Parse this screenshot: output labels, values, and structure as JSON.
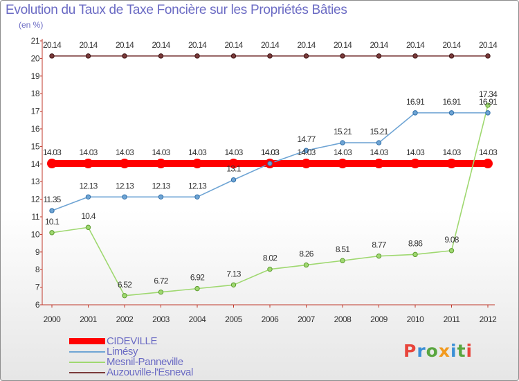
{
  "header": {
    "title": "Evolution du Taux de Taxe Foncière sur les Propriétés Bâties",
    "subtitle": "(en %)"
  },
  "logo": {
    "text": "Proxiti",
    "letter_colors": [
      "#e8453c",
      "#3a8fd6",
      "#5aa640",
      "#f29a1f",
      "#3a8fd6",
      "#5aa640",
      "#e8453c"
    ]
  },
  "chart_data": {
    "type": "line",
    "title": "Evolution du Taux de Taxe Foncière sur les Propriétés Bâties",
    "ylabel": "(en %)",
    "xlabel": "",
    "categories": [
      "2000",
      "2001",
      "2002",
      "2003",
      "2004",
      "2005",
      "2006",
      "2007",
      "2008",
      "2009",
      "2010",
      "2011",
      "2012"
    ],
    "ylim": [
      6,
      21
    ],
    "yticks": [
      6,
      7,
      8,
      9,
      10,
      11,
      12,
      13,
      14,
      15,
      16,
      17,
      18,
      19,
      20,
      21
    ],
    "grid": false,
    "legend_position": "bottom-left",
    "series": [
      {
        "name": "CIDEVILLE",
        "color": "#ff0000",
        "values": [
          14.03,
          14.03,
          14.03,
          14.03,
          14.03,
          14.03,
          14.03,
          14.03,
          14.03,
          14.03,
          14.03,
          14.03,
          14.03
        ],
        "labels": [
          "14.03",
          "14.03",
          "14.03",
          "14.03",
          "14.03",
          "14.03",
          "14.03",
          "14.03",
          "14.03",
          "14.03",
          "14.03",
          "14.03",
          "14.03"
        ]
      },
      {
        "name": "Limésy",
        "color": "#6ea4d4",
        "values": [
          11.35,
          12.13,
          12.13,
          12.13,
          12.13,
          13.1,
          14.03,
          14.77,
          15.21,
          15.21,
          16.91,
          16.91,
          16.91
        ],
        "labels": [
          "11.35",
          "12.13",
          "12.13",
          "12.13",
          "12.13",
          "13.1",
          "14.03",
          "14.77",
          "15.21",
          "15.21",
          "16.91",
          "16.91",
          "16.91"
        ]
      },
      {
        "name": "Mesnil-Panneville",
        "color": "#9fd870",
        "values": [
          10.1,
          10.4,
          6.52,
          6.72,
          6.92,
          7.13,
          8.02,
          8.26,
          8.51,
          8.77,
          8.86,
          9.08,
          17.34
        ],
        "labels": [
          "10.1",
          "10.4",
          "6.52",
          "6.72",
          "6.92",
          "7.13",
          "8.02",
          "8.26",
          "8.51",
          "8.77",
          "8.86",
          "9.08",
          "17.34"
        ]
      },
      {
        "name": "Auzouville-l'Esneval",
        "color": "#7a3a3a",
        "values": [
          20.14,
          20.14,
          20.14,
          20.14,
          20.14,
          20.14,
          20.14,
          20.14,
          20.14,
          20.14,
          20.14,
          20.14,
          20.14
        ],
        "labels": [
          "20.14",
          "20.14",
          "20.14",
          "20.14",
          "20.14",
          "20.14",
          "20.14",
          "20.14",
          "20.14",
          "20.14",
          "20.14",
          "20.14",
          "20.14"
        ]
      }
    ]
  }
}
